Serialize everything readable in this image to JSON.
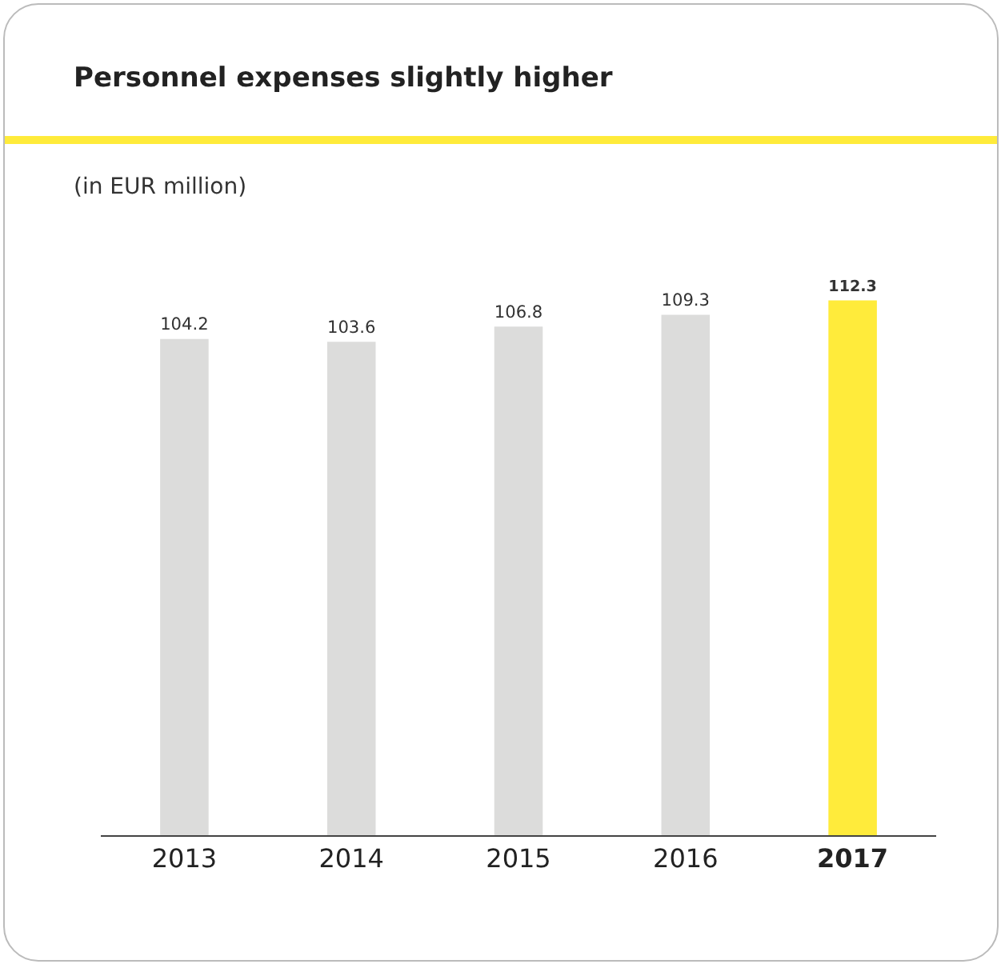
{
  "chart_data": {
    "type": "bar",
    "title": "Personnel expenses slightly higher",
    "subtitle": "(in EUR million)",
    "categories": [
      "2013",
      "2014",
      "2015",
      "2016",
      "2017"
    ],
    "values": [
      104.2,
      103.6,
      106.8,
      109.3,
      112.3
    ],
    "colors": [
      "#dcdcdb",
      "#dcdcdb",
      "#dcdcdb",
      "#dcdcdb",
      "#ffeb3b"
    ],
    "data_labels": true
  }
}
